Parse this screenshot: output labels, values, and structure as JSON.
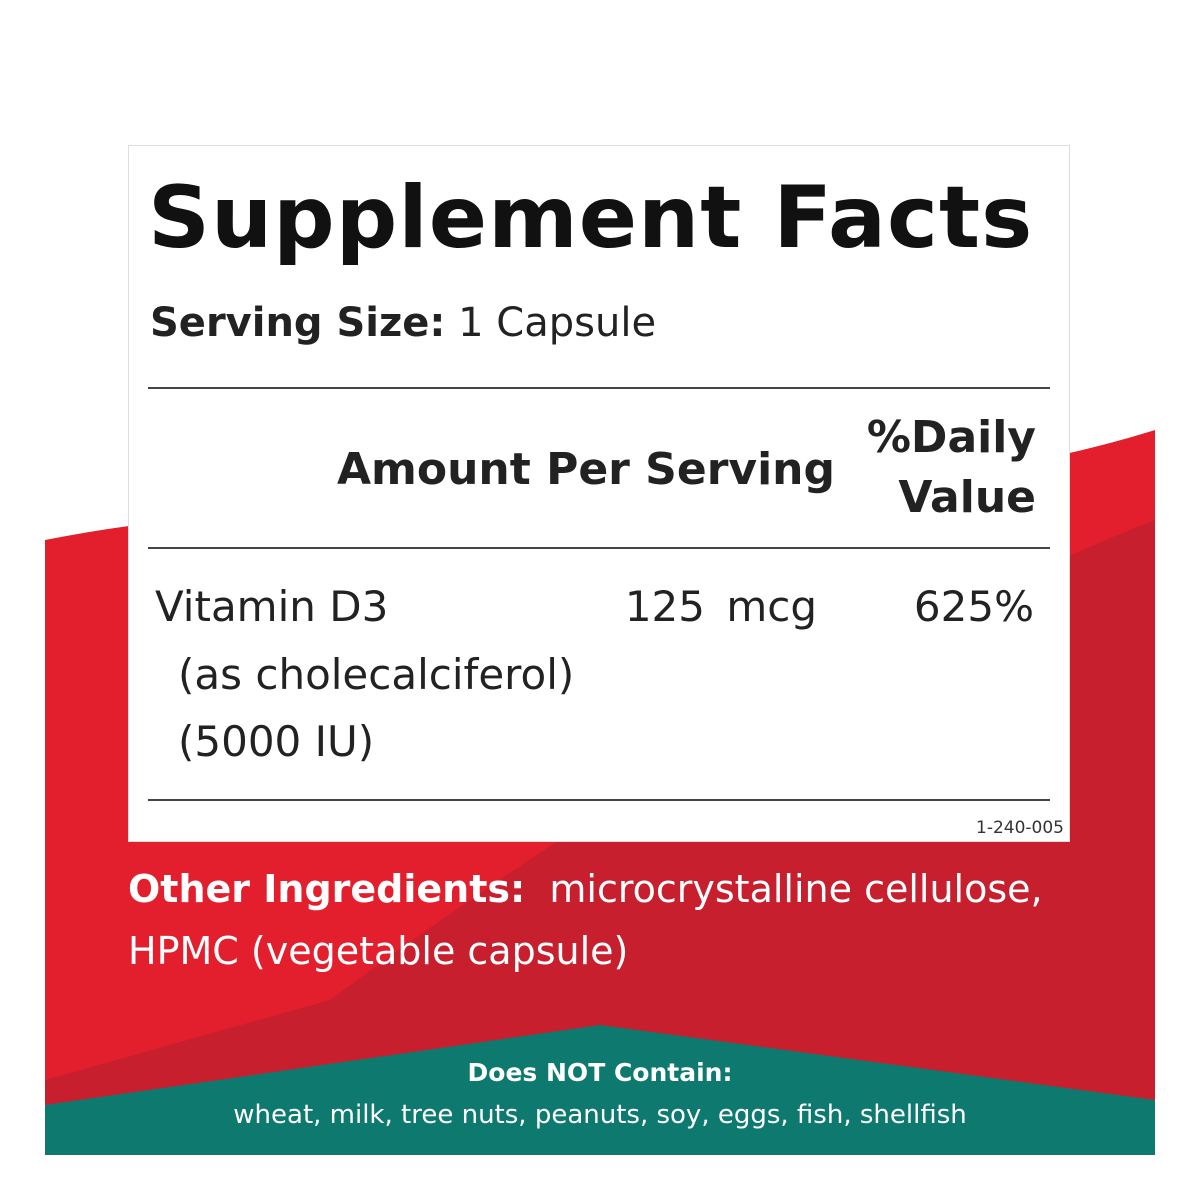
{
  "panel": {
    "title": "Supplement Facts",
    "serving_label": "Serving Size:",
    "serving_value": "1 Capsule",
    "columns": [
      "Amount Per Serving",
      "%Daily Value"
    ],
    "rows": [
      {
        "name": "Vitamin D3",
        "details": [
          "(as cholecalciferol)",
          "(5000 IU)"
        ],
        "amount": "125 mcg",
        "daily_value": "625%"
      }
    ],
    "code": "1-240-005"
  },
  "other_ingredients": {
    "label": "Other Ingredients:",
    "text": "microcrystalline cellulose, HPMC (vegetable capsule)"
  },
  "allergens": {
    "title": "Does NOT Contain:",
    "list": "wheat, milk, tree nuts, peanuts, soy, eggs, fish, shellfish"
  }
}
